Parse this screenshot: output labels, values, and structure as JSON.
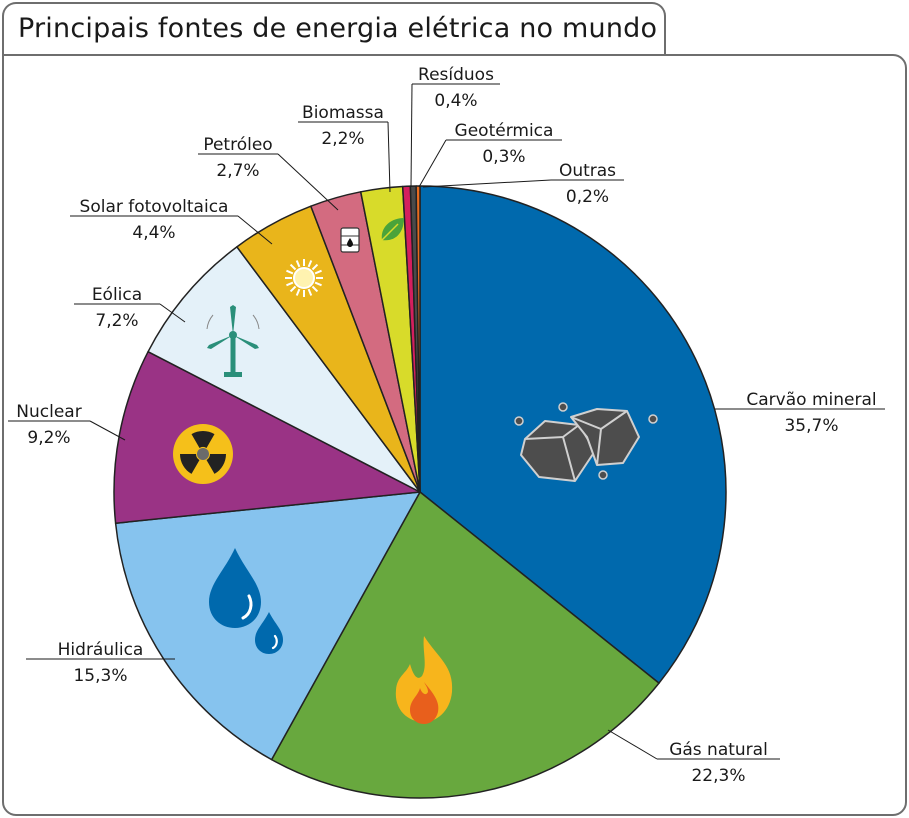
{
  "title": "Principais fontes de energia elétrica no mundo",
  "chart_data": {
    "type": "pie",
    "title": "Principais fontes de energia elétrica no mundo",
    "slices": [
      {
        "name": "Carvão mineral",
        "value_label": "35,7%",
        "value": 35.7,
        "color": "#0069ad",
        "icon": "coal-icon"
      },
      {
        "name": "Gás natural",
        "value_label": "22,3%",
        "value": 22.3,
        "color": "#68a83e",
        "icon": "flame-icon"
      },
      {
        "name": "Hidráulica",
        "value_label": "15,3%",
        "value": 15.3,
        "color": "#86c3ee",
        "icon": "water-drops-icon"
      },
      {
        "name": "Nuclear",
        "value_label": "9,2%",
        "value": 9.2,
        "color": "#9a3385",
        "icon": "radiation-icon"
      },
      {
        "name": "Eólica",
        "value_label": "7,2%",
        "value": 7.2,
        "color": "#e4f1f9",
        "icon": "wind-turbine-icon"
      },
      {
        "name": "Solar fotovoltaica",
        "value_label": "4,4%",
        "value": 4.4,
        "color": "#e9b51b",
        "icon": "sun-icon"
      },
      {
        "name": "Petróleo",
        "value_label": "2,7%",
        "value": 2.7,
        "color": "#d36b80",
        "icon": "oil-barrel-icon"
      },
      {
        "name": "Biomassa",
        "value_label": "2,2%",
        "value": 2.2,
        "color": "#d8db2a",
        "icon": "leaf-icon"
      },
      {
        "name": "Resíduos",
        "value_label": "0,4%",
        "value": 0.4,
        "color": "#d41f5e",
        "icon": ""
      },
      {
        "name": "Geotérmica",
        "value_label": "0,3%",
        "value": 0.3,
        "color": "#4a4a4a",
        "icon": ""
      },
      {
        "name": "Outras",
        "value_label": "0,2%",
        "value": 0.2,
        "color": "#e86b1f",
        "icon": ""
      }
    ]
  }
}
